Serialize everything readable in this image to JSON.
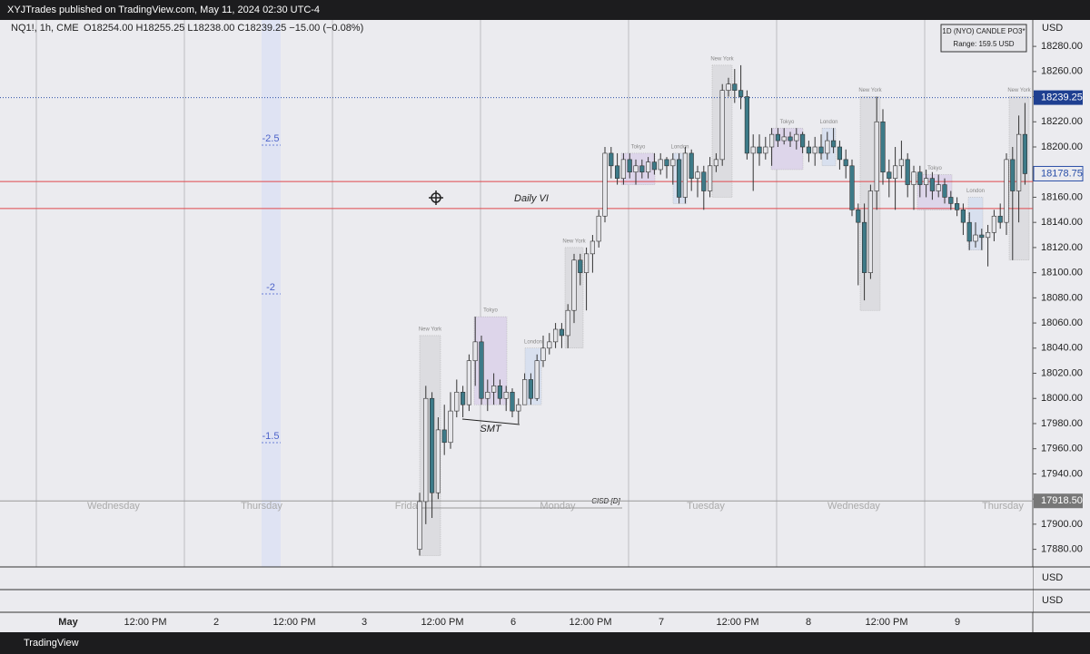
{
  "header": {
    "publisher": "XYJTrades published on TradingView.com, May 11, 2024 02:30 UTC-4",
    "symbol": "NQ1!, 1h, CME",
    "ohlc": "O18254.00 H18255.25 L18238.00 C18239.25 −15.00 (−0.08%)",
    "footer": "TradingView"
  },
  "chart_data": {
    "type": "candlestick",
    "currency": "USD",
    "indicator_box": {
      "title": "1D (NYO) CANDLE PO3*",
      "range": "Range: 159.5 USD"
    },
    "ylim": [
      17866,
      18301
    ],
    "yticks": [
      {
        "value": 17880,
        "label": "17880.00"
      },
      {
        "value": 17900,
        "label": "17900.00"
      },
      {
        "value": 17920,
        "label": "17920.00"
      },
      {
        "value": 17940,
        "label": "17940.00"
      },
      {
        "value": 17960,
        "label": "17960.00"
      },
      {
        "value": 17980,
        "label": "17980.00"
      },
      {
        "value": 18000,
        "label": "18000.00"
      },
      {
        "value": 18020,
        "label": "18020.00"
      },
      {
        "value": 18040,
        "label": "18040.00"
      },
      {
        "value": 18060,
        "label": "18060.00"
      },
      {
        "value": 18080,
        "label": "18080.00"
      },
      {
        "value": 18100,
        "label": "18100.00"
      },
      {
        "value": 18120,
        "label": "18120.00"
      },
      {
        "value": 18140,
        "label": "18140.00"
      },
      {
        "value": 18160,
        "label": "18160.00"
      },
      {
        "value": 18180,
        "label": "18180.00"
      },
      {
        "value": 18200,
        "label": "18200.00"
      },
      {
        "value": 18220,
        "label": "18220.00"
      },
      {
        "value": 18240,
        "label": "18240.00"
      },
      {
        "value": 18260,
        "label": "18260.00"
      },
      {
        "value": 18280,
        "label": "18280.00"
      }
    ],
    "last_price": 18239.25,
    "marker_price": 18178.75,
    "open_price": {
      "value": 17918.5,
      "label": "17918.50"
    },
    "levels": [
      18172.5,
      18151
    ],
    "fib_levels": [
      -2.5,
      -2,
      -1.5
    ],
    "annotations": [
      "Daily VI",
      "SMT",
      "CISD [D]"
    ],
    "sessions": [
      "New York",
      "Tokyo",
      "London",
      "New York",
      "Tokyo",
      "London",
      "New York",
      "Tokyo",
      "London",
      "New York",
      "Tokyo",
      "London",
      "New York"
    ],
    "day_labels": [
      "Wednesday",
      "Thursday",
      "Friday",
      "Monday",
      "Tuesday",
      "Wednesday",
      "Thursday"
    ],
    "time_labels": [
      "May",
      "12:00 PM",
      "2",
      "12:00 PM",
      "3",
      "12:00 PM",
      "6",
      "12:00 PM",
      "7",
      "12:00 PM",
      "8",
      "12:00 PM",
      "9"
    ],
    "bull_color": "#e6e6ea",
    "bear_color": "#3d7a88",
    "candles": [
      [
        17880,
        17925,
        17875,
        17918
      ],
      [
        17918,
        18010,
        17900,
        18000
      ],
      [
        18000,
        18005,
        17905,
        17925
      ],
      [
        17925,
        17985,
        17920,
        17975
      ],
      [
        17975,
        17995,
        17955,
        17965
      ],
      [
        17965,
        18005,
        17960,
        17990
      ],
      [
        17990,
        18015,
        17985,
        18005
      ],
      [
        18005,
        18010,
        17985,
        17995
      ],
      [
        17995,
        18035,
        17990,
        18030
      ],
      [
        18030,
        18065,
        18010,
        18045
      ],
      [
        18045,
        18050,
        17995,
        18000
      ],
      [
        18000,
        18015,
        17990,
        18005
      ],
      [
        18005,
        18020,
        17995,
        18010
      ],
      [
        18010,
        18015,
        17995,
        18000
      ],
      [
        18000,
        18010,
        17990,
        18005
      ],
      [
        18005,
        18008,
        17985,
        17990
      ],
      [
        17990,
        18000,
        17980,
        17995
      ],
      [
        17995,
        18020,
        17995,
        18015
      ],
      [
        18015,
        18020,
        17995,
        18000
      ],
      [
        18000,
        18035,
        17998,
        18030
      ],
      [
        18030,
        18050,
        18025,
        18040
      ],
      [
        18040,
        18052,
        18035,
        18045
      ],
      [
        18045,
        18060,
        18040,
        18055
      ],
      [
        18055,
        18060,
        18040,
        18050
      ],
      [
        18050,
        18075,
        18040,
        18070
      ],
      [
        18070,
        18115,
        18060,
        18110
      ],
      [
        18110,
        18115,
        18090,
        18100
      ],
      [
        18100,
        18120,
        18070,
        18115
      ],
      [
        18115,
        18130,
        18100,
        18125
      ],
      [
        18125,
        18150,
        18120,
        18145
      ],
      [
        18145,
        18200,
        18140,
        18195
      ],
      [
        18195,
        18200,
        18175,
        18185
      ],
      [
        18185,
        18195,
        18170,
        18175
      ],
      [
        18175,
        18195,
        18170,
        18190
      ],
      [
        18190,
        18195,
        18175,
        18180
      ],
      [
        18180,
        18190,
        18170,
        18185
      ],
      [
        18185,
        18190,
        18175,
        18180
      ],
      [
        18180,
        18192,
        18175,
        18188
      ],
      [
        18188,
        18195,
        18178,
        18182
      ],
      [
        18182,
        18195,
        18178,
        18190
      ],
      [
        18190,
        18192,
        18175,
        18185
      ],
      [
        18185,
        18195,
        18170,
        18190
      ],
      [
        18190,
        18195,
        18155,
        18160
      ],
      [
        18160,
        18200,
        18155,
        18195
      ],
      [
        18195,
        18198,
        18165,
        18175
      ],
      [
        18175,
        18185,
        18160,
        18180
      ],
      [
        18180,
        18185,
        18150,
        18165
      ],
      [
        18165,
        18192,
        18160,
        18185
      ],
      [
        18185,
        18195,
        18180,
        18190
      ],
      [
        18190,
        18250,
        18185,
        18245
      ],
      [
        18245,
        18255,
        18240,
        18250
      ],
      [
        18250,
        18262,
        18235,
        18245
      ],
      [
        18245,
        18265,
        18230,
        18240
      ],
      [
        18240,
        18245,
        18190,
        18195
      ],
      [
        18195,
        18210,
        18165,
        18200
      ],
      [
        18200,
        18210,
        18185,
        18195
      ],
      [
        18195,
        18208,
        18190,
        18200
      ],
      [
        18200,
        18215,
        18185,
        18210
      ],
      [
        18210,
        18215,
        18200,
        18205
      ],
      [
        18205,
        18215,
        18202,
        18208
      ],
      [
        18208,
        18212,
        18200,
        18205
      ],
      [
        18205,
        18215,
        18198,
        18210
      ],
      [
        18210,
        18212,
        18195,
        18200
      ],
      [
        18200,
        18205,
        18188,
        18195
      ],
      [
        18195,
        18208,
        18185,
        18200
      ],
      [
        18200,
        18210,
        18190,
        18195
      ],
      [
        18195,
        18212,
        18190,
        18205
      ],
      [
        18205,
        18215,
        18195,
        18200
      ],
      [
        18200,
        18205,
        18182,
        18190
      ],
      [
        18190,
        18198,
        18175,
        18185
      ],
      [
        18185,
        18190,
        18145,
        18150
      ],
      [
        18150,
        18155,
        18090,
        18140
      ],
      [
        18140,
        18155,
        18078,
        18100
      ],
      [
        18100,
        18170,
        18095,
        18165
      ],
      [
        18165,
        18240,
        18150,
        18220
      ],
      [
        18220,
        18230,
        18170,
        18180
      ],
      [
        18180,
        18190,
        18160,
        18175
      ],
      [
        18175,
        18200,
        18150,
        18185
      ],
      [
        18185,
        18205,
        18175,
        18190
      ],
      [
        18190,
        18195,
        18160,
        18170
      ],
      [
        18170,
        18185,
        18150,
        18180
      ],
      [
        18180,
        18185,
        18160,
        18170
      ],
      [
        18170,
        18182,
        18160,
        18175
      ],
      [
        18175,
        18180,
        18158,
        18165
      ],
      [
        18165,
        18178,
        18160,
        18170
      ],
      [
        18170,
        18175,
        18155,
        18160
      ],
      [
        18160,
        18165,
        18150,
        18155
      ],
      [
        18155,
        18160,
        18145,
        18150
      ],
      [
        18150,
        18155,
        18130,
        18140
      ],
      [
        18140,
        18148,
        18118,
        18125
      ],
      [
        18125,
        18140,
        18120,
        18130
      ],
      [
        18130,
        18135,
        18118,
        18128
      ],
      [
        18128,
        18138,
        18105,
        18132
      ],
      [
        18132,
        18150,
        18125,
        18145
      ],
      [
        18145,
        18155,
        18135,
        18140
      ],
      [
        18140,
        18195,
        18130,
        18190
      ],
      [
        18190,
        18200,
        18110,
        18165
      ],
      [
        18165,
        18225,
        18140,
        18210
      ],
      [
        18210,
        18235,
        18170,
        18178.75
      ]
    ]
  }
}
